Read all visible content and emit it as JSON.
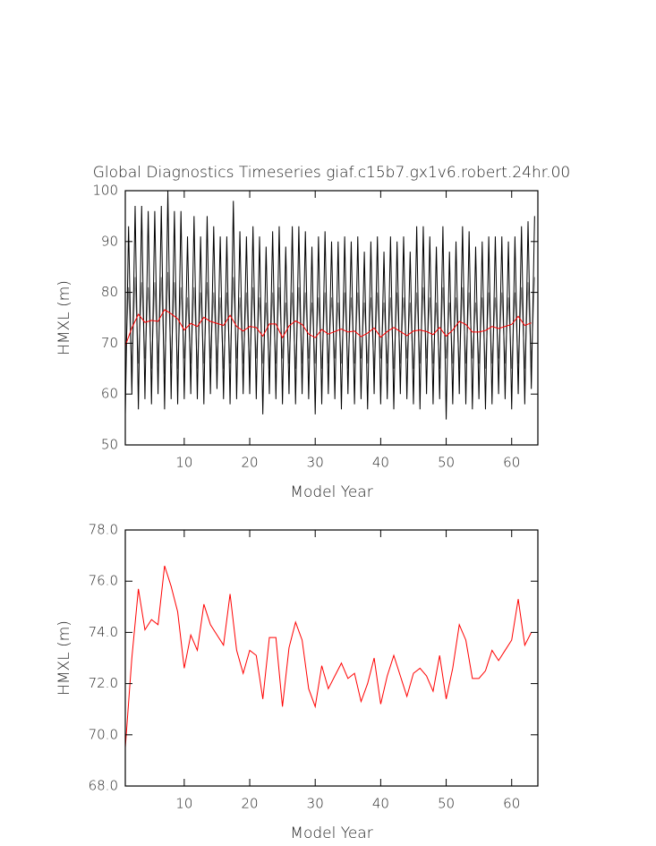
{
  "chart_data": [
    {
      "type": "line",
      "title": "Global Diagnostics Timeseries giaf.c15b7.gx1v6.robert.24hr.00",
      "xlabel": "Model Year",
      "ylabel": "HMXL (m)",
      "xlim": [
        1,
        64
      ],
      "ylim": [
        50,
        100
      ],
      "xticks": [
        10,
        20,
        30,
        40,
        50,
        60
      ],
      "yticks": [
        50,
        60,
        70,
        80,
        90,
        100
      ],
      "series": [
        {
          "color": "#808080",
          "x": [
            1,
            1.5,
            2,
            2.5,
            3,
            3.5,
            4,
            4.5,
            5,
            5.5,
            6,
            6.5,
            7,
            7.5,
            8,
            8.5,
            9,
            9.5,
            10,
            10.5,
            11,
            11.5,
            12,
            12.5,
            13,
            13.5,
            14,
            14.5,
            15,
            15.5,
            16,
            16.5,
            17,
            17.5,
            18,
            18.5,
            19,
            19.5,
            20,
            20.5,
            21,
            21.5,
            22,
            22.5,
            23,
            23.5,
            24,
            24.5,
            25,
            25.5,
            26,
            26.5,
            27,
            27.5,
            28,
            28.5,
            29,
            29.5,
            30,
            30.5,
            31,
            31.5,
            32,
            32.5,
            33,
            33.5,
            34,
            34.5,
            35,
            35.5,
            36,
            36.5,
            37,
            37.5,
            38,
            38.5,
            39,
            39.5,
            40,
            40.5,
            41,
            41.5,
            42,
            42.5,
            43,
            43.5,
            44,
            44.5,
            45,
            45.5,
            46,
            46.5,
            47,
            47.5,
            48,
            48.5,
            49,
            49.5,
            50,
            50.5,
            51,
            51.5,
            52,
            52.5,
            53,
            53.5,
            54,
            54.5,
            55,
            55.5,
            56,
            56.5,
            57,
            57.5,
            58,
            58.5,
            59,
            59.5,
            60,
            60.5,
            61,
            61.5,
            62,
            62.5,
            63,
            63.5
          ],
          "values": [
            66,
            81,
            65,
            83,
            66,
            82,
            67,
            81,
            65,
            82,
            66,
            83,
            64,
            84,
            66,
            82,
            65,
            81,
            67,
            79,
            66,
            81,
            65,
            80,
            66,
            82,
            67,
            80,
            66,
            79,
            65,
            80,
            66,
            83,
            67,
            79,
            66,
            80,
            65,
            81,
            67,
            79,
            66,
            78,
            65,
            80,
            66,
            81,
            67,
            78,
            66,
            80,
            65,
            81,
            66,
            80,
            67,
            78,
            66,
            79,
            65,
            80,
            66,
            79,
            67,
            78,
            66,
            80,
            65,
            79,
            66,
            80,
            67,
            78,
            66,
            79,
            65,
            80,
            67,
            78,
            66,
            79,
            65,
            80,
            66,
            79,
            67,
            78,
            65,
            80,
            66,
            81,
            67,
            79,
            66,
            78,
            65,
            81,
            67,
            78,
            66,
            79,
            65,
            81,
            66,
            80,
            67,
            78,
            66,
            79,
            65,
            80,
            66,
            79,
            67,
            80,
            66,
            79,
            65,
            80,
            66,
            81,
            65,
            82,
            66,
            83
          ]
        },
        {
          "color": "#000000",
          "x": [
            1,
            1.5,
            2,
            2.5,
            3,
            3.5,
            4,
            4.5,
            5,
            5.5,
            6,
            6.5,
            7,
            7.5,
            8,
            8.5,
            9,
            9.5,
            10,
            10.5,
            11,
            11.5,
            12,
            12.5,
            13,
            13.5,
            14,
            14.5,
            15,
            15.5,
            16,
            16.5,
            17,
            17.5,
            18,
            18.5,
            19,
            19.5,
            20,
            20.5,
            21,
            21.5,
            22,
            22.5,
            23,
            23.5,
            24,
            24.5,
            25,
            25.5,
            26,
            26.5,
            27,
            27.5,
            28,
            28.5,
            29,
            29.5,
            30,
            30.5,
            31,
            31.5,
            32,
            32.5,
            33,
            33.5,
            34,
            34.5,
            35,
            35.5,
            36,
            36.5,
            37,
            37.5,
            38,
            38.5,
            39,
            39.5,
            40,
            40.5,
            41,
            41.5,
            42,
            42.5,
            43,
            43.5,
            44,
            44.5,
            45,
            45.5,
            46,
            46.5,
            47,
            47.5,
            48,
            48.5,
            49,
            49.5,
            50,
            50.5,
            51,
            51.5,
            52,
            52.5,
            53,
            53.5,
            54,
            54.5,
            55,
            55.5,
            56,
            56.5,
            57,
            57.5,
            58,
            58.5,
            59,
            59.5,
            60,
            60.5,
            61,
            61.5,
            62,
            62.5,
            63,
            63.5
          ],
          "values": [
            56,
            93,
            60,
            97,
            57,
            97,
            59,
            96,
            58,
            96,
            60,
            97,
            57,
            100,
            59,
            96,
            58,
            96,
            59,
            91,
            60,
            95,
            59,
            91,
            58,
            95,
            60,
            93,
            61,
            91,
            59,
            91,
            58,
            98,
            59,
            92,
            60,
            91,
            60,
            93,
            59,
            91,
            56,
            89,
            60,
            92,
            59,
            93,
            58,
            89,
            60,
            93,
            58,
            93,
            60,
            92,
            59,
            89,
            56,
            91,
            58,
            92,
            60,
            90,
            59,
            90,
            57,
            91,
            60,
            90,
            58,
            91,
            59,
            88,
            57,
            90,
            60,
            91,
            58,
            88,
            59,
            91,
            57,
            90,
            60,
            91,
            59,
            88,
            58,
            93,
            57,
            93,
            60,
            91,
            58,
            89,
            59,
            93,
            55,
            88,
            58,
            90,
            60,
            93,
            58,
            92,
            57,
            89,
            59,
            90,
            57,
            91,
            58,
            91,
            60,
            91,
            59,
            90,
            57,
            91,
            60,
            93,
            58,
            94,
            61,
            95
          ]
        },
        {
          "color": "#ff0000",
          "x": [
            1,
            2,
            3,
            4,
            5,
            6,
            7,
            8,
            9,
            10,
            11,
            12,
            13,
            14,
            15,
            16,
            17,
            18,
            19,
            20,
            21,
            22,
            23,
            24,
            25,
            26,
            27,
            28,
            29,
            30,
            31,
            32,
            33,
            34,
            35,
            36,
            37,
            38,
            39,
            40,
            41,
            42,
            43,
            44,
            45,
            46,
            47,
            48,
            49,
            50,
            51,
            52,
            53,
            54,
            55,
            56,
            57,
            58,
            59,
            60,
            61,
            62,
            63
          ],
          "values": [
            69.5,
            73.0,
            75.7,
            74.1,
            74.5,
            74.3,
            76.6,
            75.8,
            74.8,
            72.6,
            73.9,
            73.3,
            75.1,
            74.3,
            73.9,
            73.5,
            75.5,
            73.3,
            72.4,
            73.3,
            73.1,
            71.4,
            73.8,
            73.8,
            71.1,
            73.4,
            74.4,
            73.7,
            71.8,
            71.1,
            72.7,
            71.8,
            72.3,
            72.8,
            72.2,
            72.4,
            71.3,
            72.0,
            73.0,
            71.2,
            72.3,
            73.1,
            72.3,
            71.5,
            72.4,
            72.6,
            72.3,
            71.7,
            73.1,
            71.4,
            72.6,
            74.3,
            73.7,
            72.2,
            72.2,
            72.5,
            73.3,
            72.9,
            73.3,
            73.7,
            75.3,
            73.5,
            74.0
          ]
        }
      ]
    },
    {
      "type": "line",
      "xlabel": "Model Year",
      "ylabel": "HMXL (m)",
      "xlim": [
        1,
        64
      ],
      "ylim": [
        68,
        78
      ],
      "xticks": [
        10,
        20,
        30,
        40,
        50,
        60
      ],
      "yticks": [
        {
          "value": 68,
          "label": "68.0"
        },
        {
          "value": 70,
          "label": "70.0"
        },
        {
          "value": 72,
          "label": "72.0"
        },
        {
          "value": 74,
          "label": "74.0"
        },
        {
          "value": 76,
          "label": "76.0"
        },
        {
          "value": 78,
          "label": "78.0"
        }
      ],
      "series": [
        {
          "color": "#ff0000",
          "x": [
            1,
            2,
            3,
            4,
            5,
            6,
            7,
            8,
            9,
            10,
            11,
            12,
            13,
            14,
            15,
            16,
            17,
            18,
            19,
            20,
            21,
            22,
            23,
            24,
            25,
            26,
            27,
            28,
            29,
            30,
            31,
            32,
            33,
            34,
            35,
            36,
            37,
            38,
            39,
            40,
            41,
            42,
            43,
            44,
            45,
            46,
            47,
            48,
            49,
            50,
            51,
            52,
            53,
            54,
            55,
            56,
            57,
            58,
            59,
            60,
            61,
            62,
            63
          ],
          "values": [
            69.5,
            73.0,
            75.7,
            74.1,
            74.5,
            74.3,
            76.6,
            75.8,
            74.8,
            72.6,
            73.9,
            73.3,
            75.1,
            74.3,
            73.9,
            73.5,
            75.5,
            73.3,
            72.4,
            73.3,
            73.1,
            71.4,
            73.8,
            73.8,
            71.1,
            73.4,
            74.4,
            73.7,
            71.8,
            71.1,
            72.7,
            71.8,
            72.3,
            72.8,
            72.2,
            72.4,
            71.3,
            72.0,
            73.0,
            71.2,
            72.3,
            73.1,
            72.3,
            71.5,
            72.4,
            72.6,
            72.3,
            71.7,
            73.1,
            71.4,
            72.6,
            74.3,
            73.7,
            72.2,
            72.2,
            72.5,
            73.3,
            72.9,
            73.3,
            73.7,
            75.3,
            73.5,
            74.0
          ]
        }
      ]
    }
  ]
}
